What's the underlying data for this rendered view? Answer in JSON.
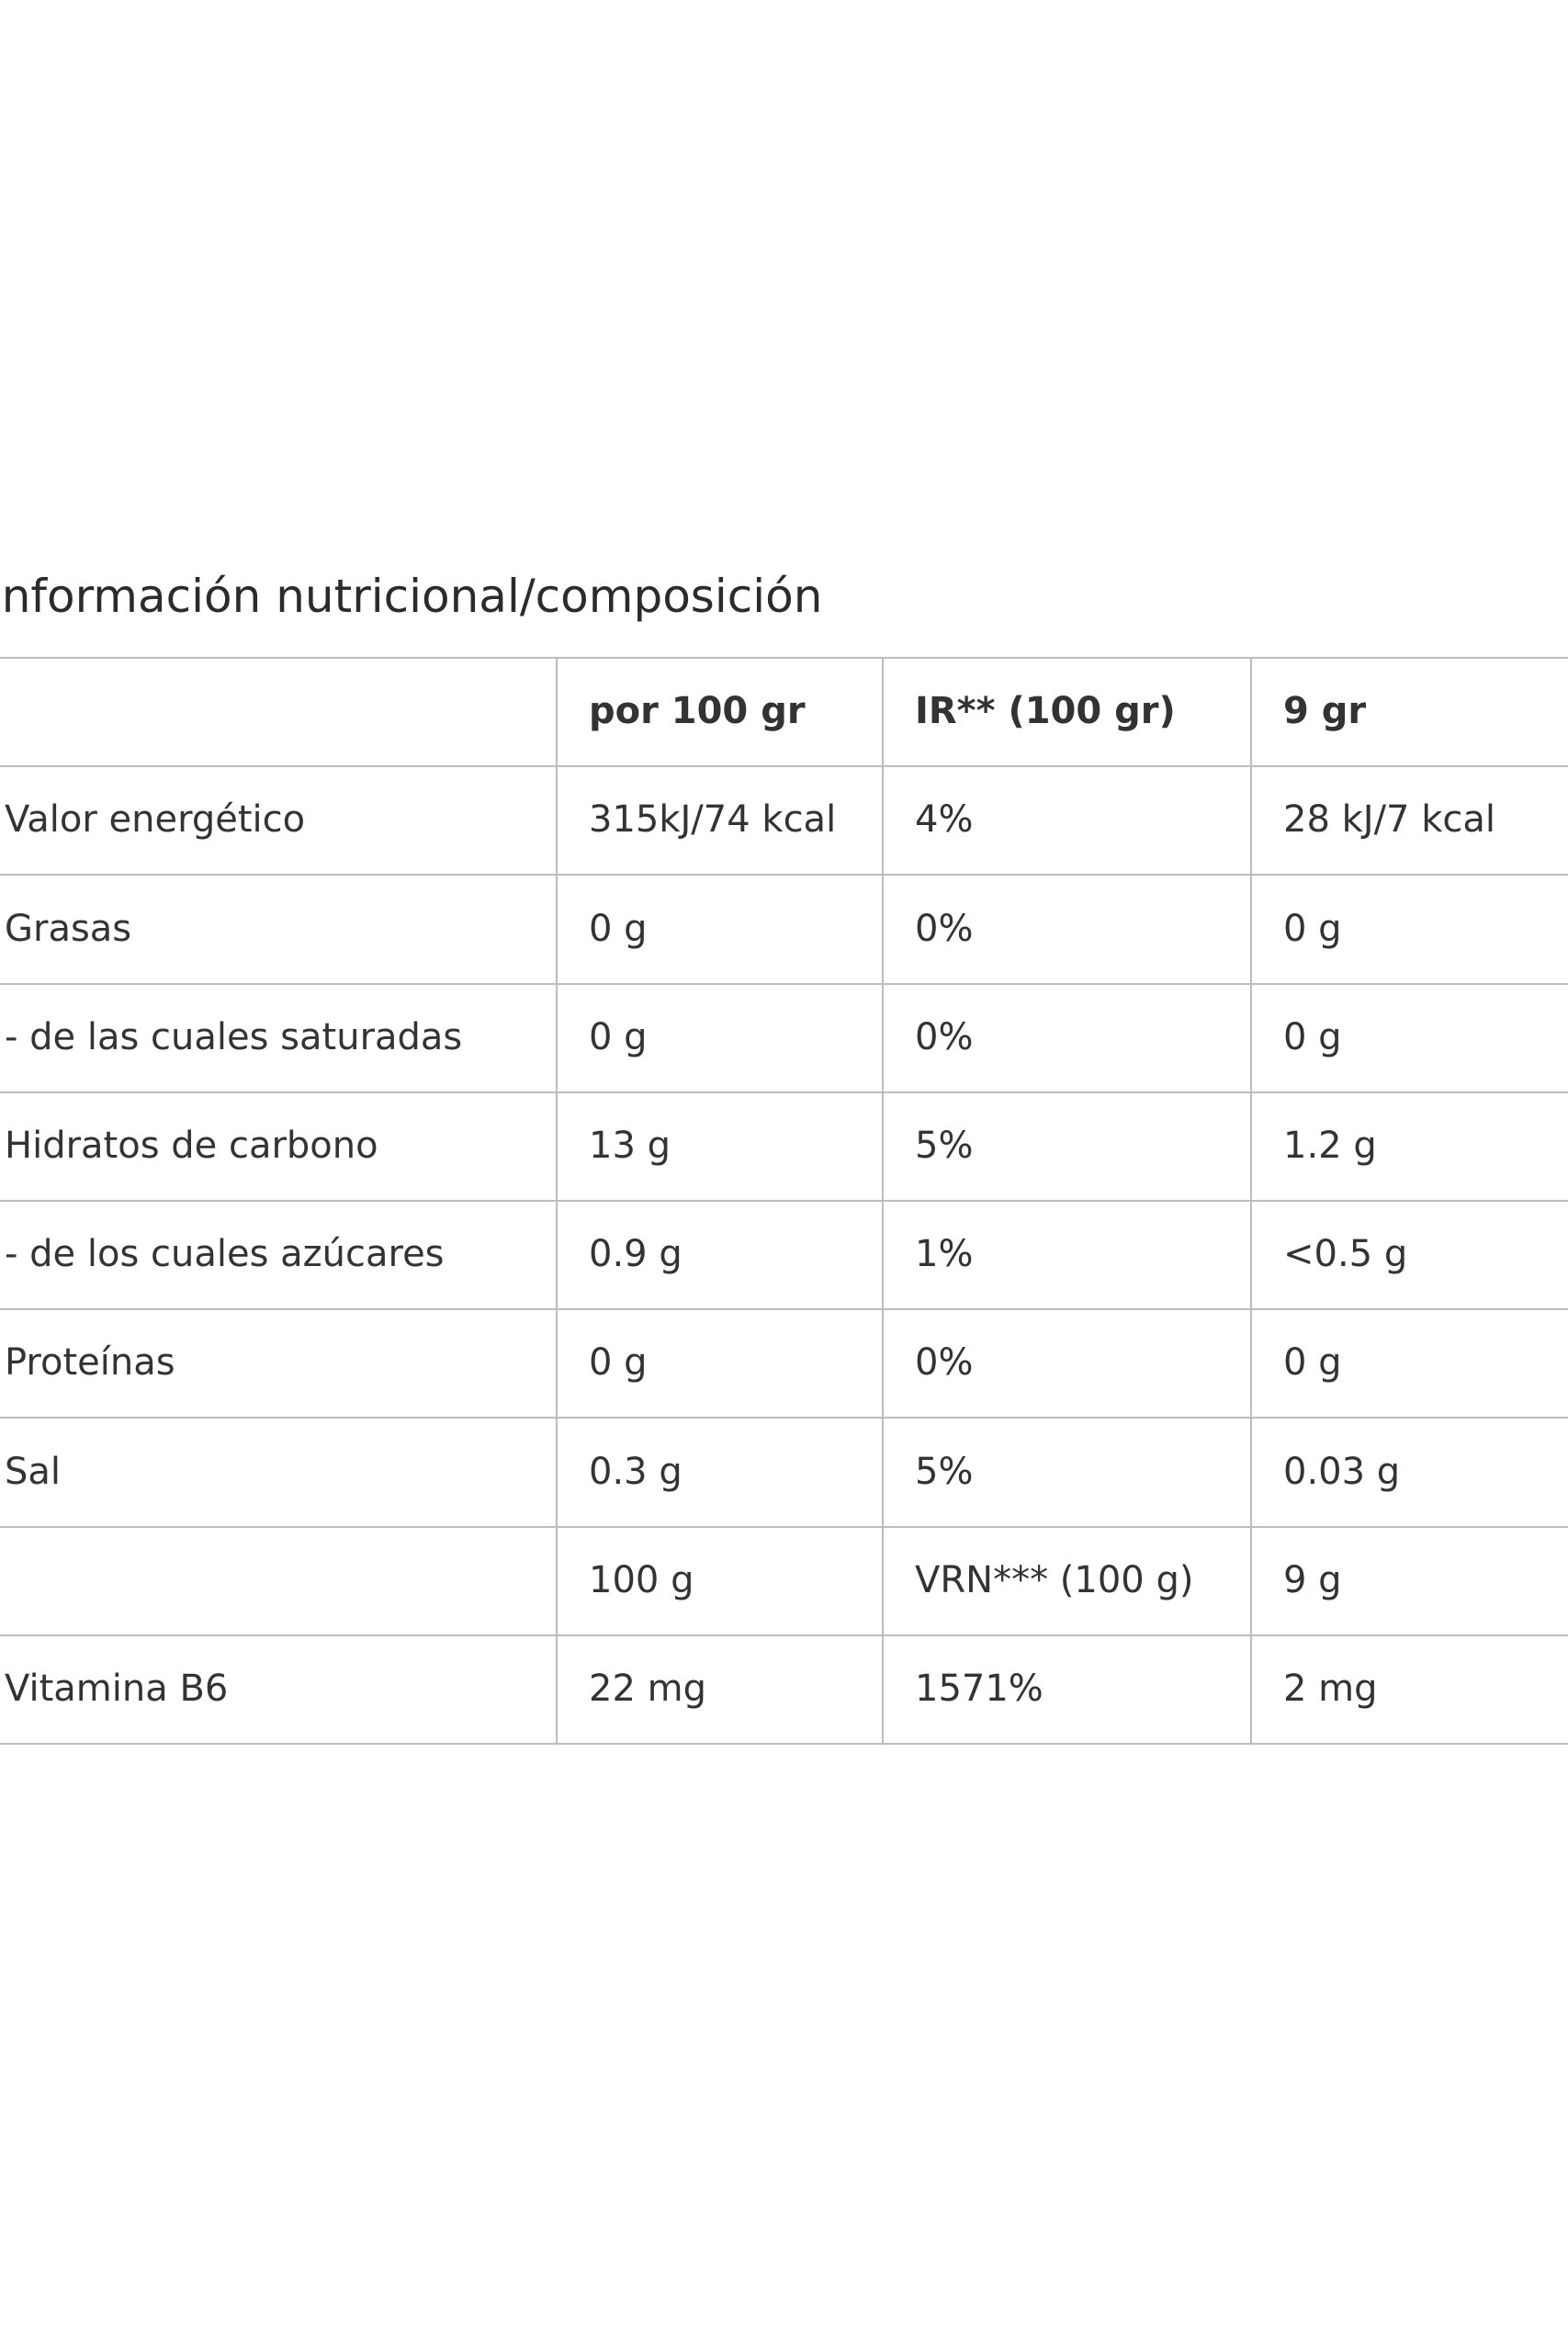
{
  "title": "Información nutricional/composición",
  "table": {
    "header": [
      null,
      "por 100 gr",
      "IR** (100 gr)",
      "9 gr"
    ],
    "rows": [
      [
        "Valor energético",
        "315kJ/74 kcal",
        "4%",
        "28 kJ/7 kcal"
      ],
      [
        "Grasas",
        "0 g",
        "0%",
        "0 g"
      ],
      [
        "- de las cuales saturadas",
        "0 g",
        "0%",
        "0 g"
      ],
      [
        "Hidratos de carbono",
        "13 g",
        "5%",
        "1.2 g"
      ],
      [
        "- de los cuales azúcares",
        "0.9 g",
        "1%",
        "<0.5 g"
      ],
      [
        "Proteínas",
        "0 g",
        "0%",
        "0 g"
      ],
      [
        "Sal",
        "0.3 g",
        "5%",
        "0.03 g"
      ],
      [
        null,
        "100 g",
        "VRN*** (100 g)",
        "9 g"
      ],
      [
        "Vitamina B6",
        "22 mg",
        "1571%",
        "2 mg"
      ]
    ]
  }
}
